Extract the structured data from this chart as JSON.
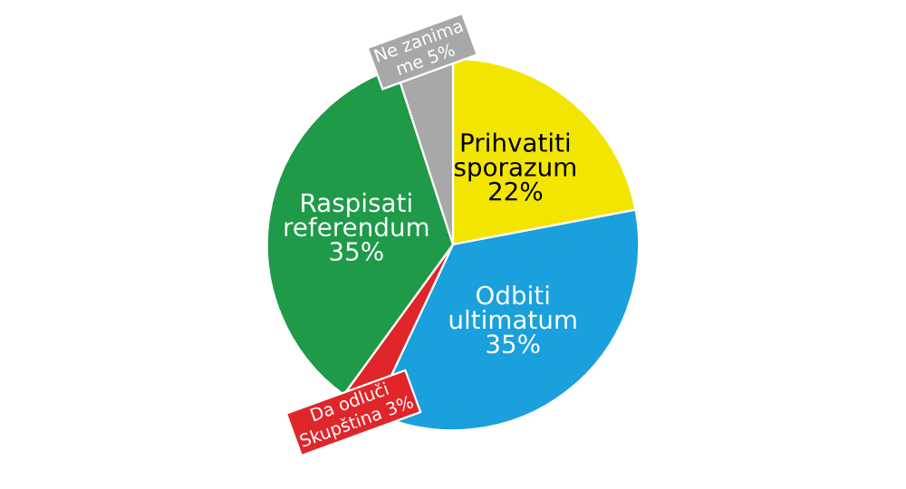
{
  "chart_data": {
    "type": "pie",
    "categories": [
      "Prihvatiti sporazum",
      "Odbiti ultimatum",
      "Da odluči Skupština",
      "Raspisati referendum",
      "Ne zanima me"
    ],
    "values": [
      22,
      35,
      3,
      35,
      5
    ],
    "value_labels": [
      "22%",
      "35%",
      "3%",
      "35%",
      "5%"
    ],
    "colors": [
      "#f2e600",
      "#1aa0dc",
      "#e0262a",
      "#1e9a48",
      "#a8a8a8"
    ]
  }
}
